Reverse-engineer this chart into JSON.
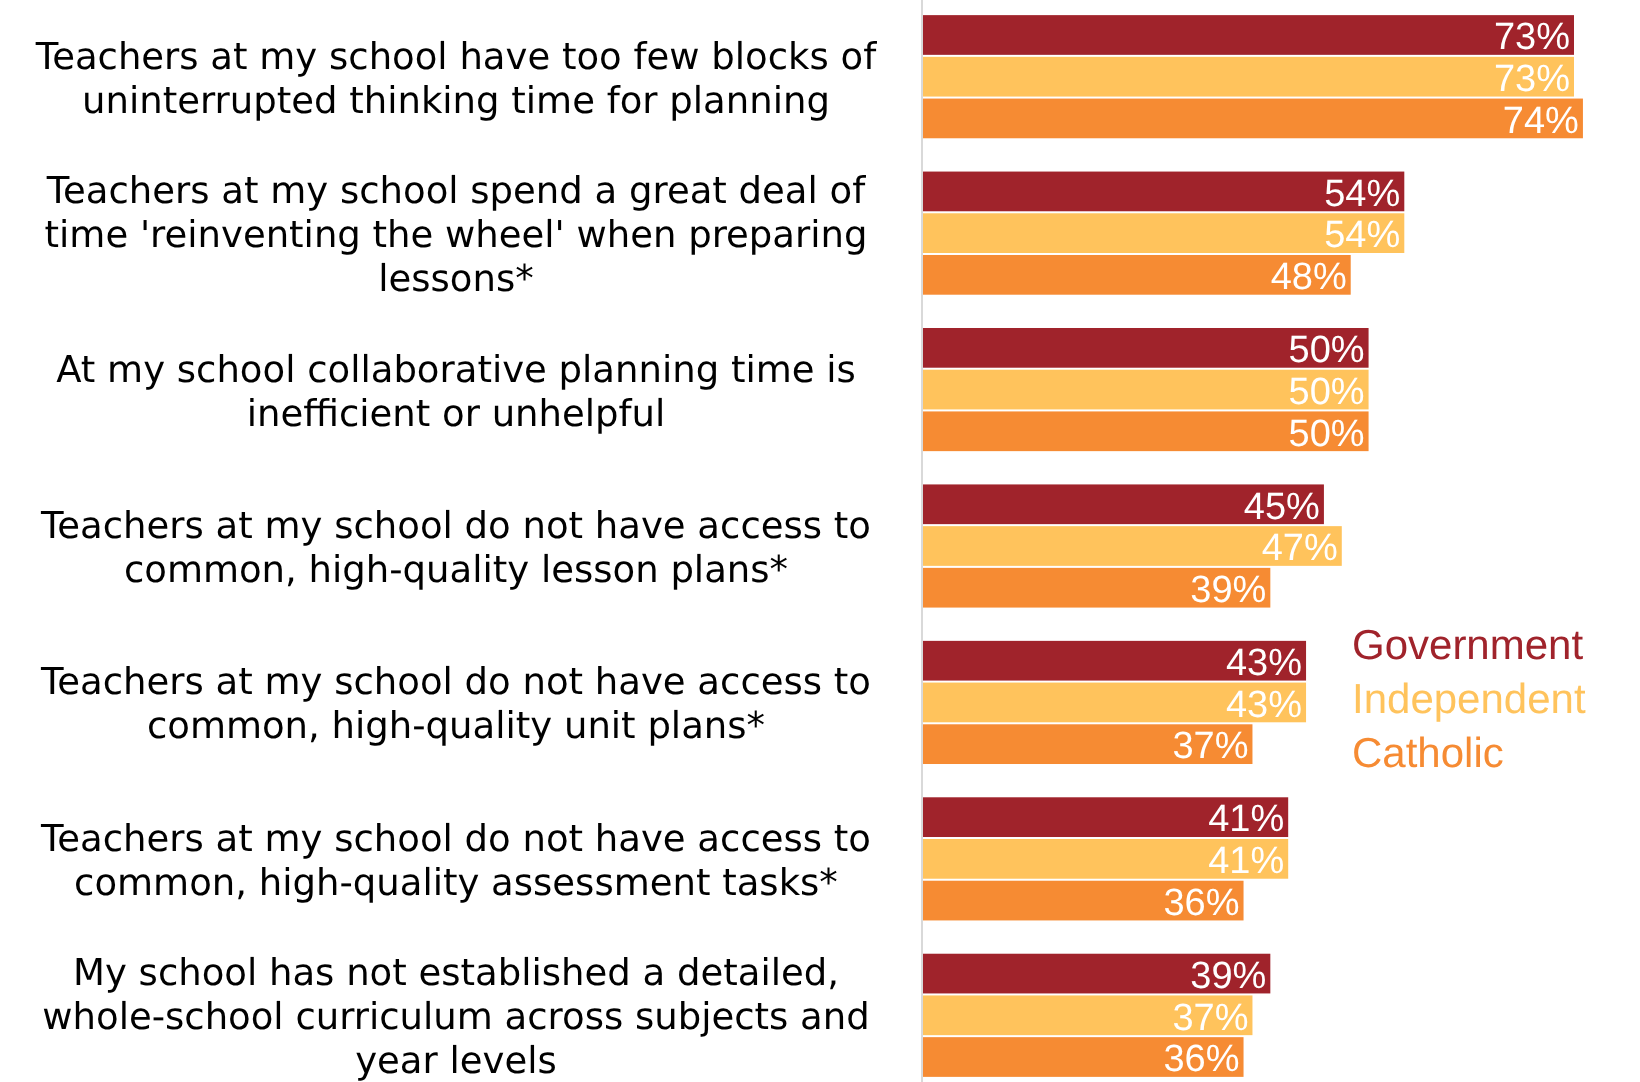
{
  "chart_data": {
    "type": "bar",
    "orientation": "horizontal",
    "legend": "right",
    "categories": [
      "Teachers at my school have too few blocks of uninterrupted thinking time for planning",
      "Teachers at my school spend a great deal of time 'reinventing the wheel' when preparing lessons*",
      "At my school collaborative planning time is inefficient or unhelpful",
      "Teachers at my school do not have access to common, high-quality lesson plans*",
      "Teachers at my school do not have access to common, high-quality unit plans*",
      "Teachers at my school do not have access to common, high-quality assessment tasks*",
      "My school has not established a detailed, whole-school curriculum across subjects and year levels"
    ],
    "series": [
      {
        "name": "Government",
        "color": "#a0232b",
        "values": [
          73,
          54,
          50,
          45,
          43,
          41,
          39
        ],
        "value_labels": [
          "73%",
          "54%",
          "50%",
          "45%",
          "43%",
          "41%",
          "39%"
        ]
      },
      {
        "name": "Independent",
        "color": "#ffc35c",
        "values": [
          73,
          54,
          50,
          47,
          43,
          41,
          37
        ],
        "value_labels": [
          "73%",
          "54%",
          "50%",
          "47%",
          "43%",
          "41%",
          "37%"
        ]
      },
      {
        "name": "Catholic",
        "color": "#f68b33",
        "values": [
          74,
          48,
          50,
          39,
          37,
          36,
          36
        ],
        "value_labels": [
          "74%",
          "48%",
          "50%",
          "39%",
          "37%",
          "36%",
          "36%"
        ]
      }
    ]
  }
}
